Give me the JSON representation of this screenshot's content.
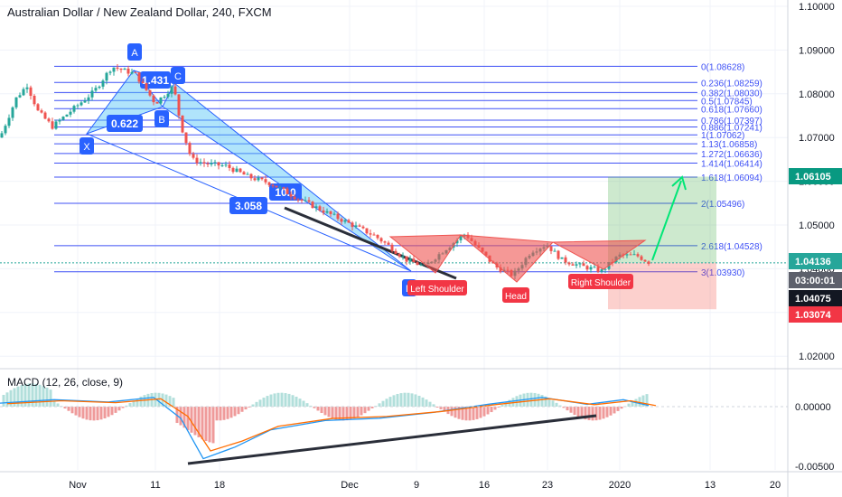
{
  "header": {
    "title": "Australian Dollar / New Zealand Dollar, 240, FXCM"
  },
  "macd": {
    "title": "MACD (12, 26, close, 9)",
    "ticks": [
      "0.00000",
      "-0.00500"
    ]
  },
  "chart_data": {
    "type": "candlestick",
    "price_axis": {
      "ticks": [
        "1.10000",
        "1.09000",
        "1.08000",
        "1.07000",
        "1.06000",
        "1.05000",
        "1.04000",
        "1.03000",
        "1.02000"
      ],
      "ylim": [
        1.0165,
        1.1015
      ]
    },
    "time_axis": {
      "ticks": [
        "Nov",
        "11",
        "18",
        "Dec",
        "9",
        "16",
        "23",
        "2020",
        "13",
        "20"
      ]
    },
    "price_labels": [
      {
        "text": "1.06105",
        "color": "#089981"
      },
      {
        "text": "1.04136",
        "color": "#26a69a"
      },
      {
        "text": "03:00:01",
        "color": "#5d606b"
      },
      {
        "text": "1.04075",
        "color": "#131722"
      },
      {
        "text": "1.03074",
        "color": "#f23645"
      }
    ],
    "fib_levels": [
      {
        "label": "0(1.08628)",
        "price": 1.08628
      },
      {
        "label": "0.236(1.08259)",
        "price": 1.08259
      },
      {
        "label": "0.382(1.08030)",
        "price": 1.0803
      },
      {
        "label": "0.5(1.07845)",
        "price": 1.07845
      },
      {
        "label": "0.618(1.07660)",
        "price": 1.0766
      },
      {
        "label": "0.786(1.07397)",
        "price": 1.07397
      },
      {
        "label": "0.886(1.07241)",
        "price": 1.07241
      },
      {
        "label": "1(1.07062)",
        "price": 1.07062
      },
      {
        "label": "1.13(1.06858)",
        "price": 1.06858
      },
      {
        "label": "1.272(1.06636)",
        "price": 1.06636
      },
      {
        "label": "1.414(1.06414)",
        "price": 1.06414
      },
      {
        "label": "1.618(1.06094)",
        "price": 1.06094
      },
      {
        "label": "2(1.05496)",
        "price": 1.05496
      },
      {
        "label": "2.618(1.04528)",
        "price": 1.04528
      },
      {
        "label": "3(1.03930)",
        "price": 1.0393
      }
    ],
    "harmonic_points": [
      "X",
      "A",
      "B",
      "C",
      "D"
    ],
    "harmonic_ratios": [
      "0.622",
      "1.431",
      "3.058",
      "10.0"
    ],
    "pattern_labels": [
      "Left Shoulder",
      "Head",
      "Right Shoulder"
    ]
  },
  "colors": {
    "up": "#26a69a",
    "down": "#ef5350",
    "fib": "#3f51f5",
    "harmonic_fill": "#4fc3f7",
    "shoulder_fill": "#ef5350",
    "target": "#4caf50",
    "stop": "#f44336",
    "macd_line": "#2196f3",
    "signal_line": "#ff6d00"
  }
}
